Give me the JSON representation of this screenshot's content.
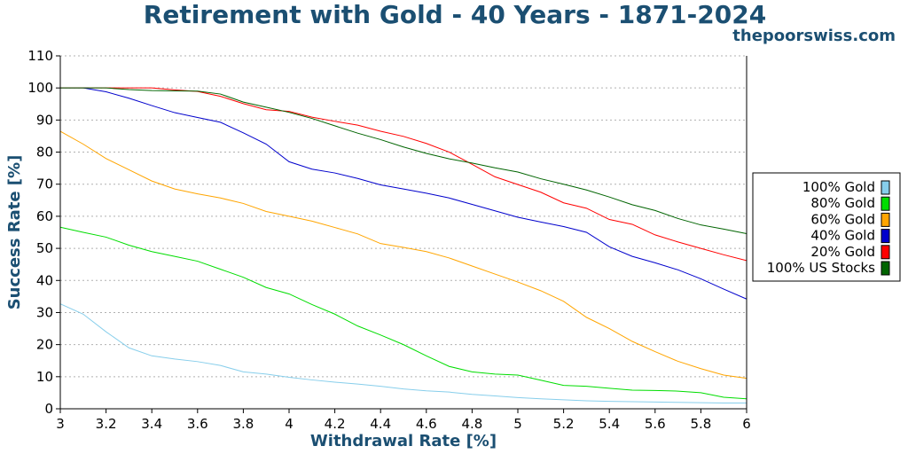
{
  "chart_data": {
    "type": "line",
    "title": "Retirement with Gold - 40 Years - 1871-2024",
    "watermark": "thepoorswiss.com",
    "xlabel": "Withdrawal Rate [%]",
    "ylabel": "Success Rate [%]",
    "xlim": [
      3,
      6
    ],
    "ylim": [
      0,
      110
    ],
    "xticks": [
      "3",
      "3.2",
      "3.4",
      "3.6",
      "3.8",
      "4",
      "4.2",
      "4.4",
      "4.6",
      "4.8",
      "5",
      "5.2",
      "5.4",
      "5.6",
      "5.8",
      "6"
    ],
    "yticks": [
      "0",
      "10",
      "20",
      "30",
      "40",
      "50",
      "60",
      "70",
      "80",
      "90",
      "100",
      "110"
    ],
    "grid": "horizontal dotted",
    "legend_position": "right",
    "x": [
      3.0,
      3.1,
      3.2,
      3.3,
      3.4,
      3.5,
      3.6,
      3.7,
      3.8,
      3.9,
      4.0,
      4.1,
      4.2,
      4.3,
      4.4,
      4.5,
      4.6,
      4.7,
      4.8,
      4.9,
      5.0,
      5.1,
      5.2,
      5.3,
      5.4,
      5.5,
      5.6,
      5.7,
      5.8,
      5.9,
      6.0
    ],
    "series": [
      {
        "name": "100% Gold",
        "color": "#87ceeb",
        "values": [
          32.7,
          29.5,
          24.0,
          19.0,
          16.5,
          15.5,
          14.7,
          13.5,
          11.5,
          10.8,
          9.8,
          9.0,
          8.3,
          7.7,
          7.0,
          6.2,
          5.6,
          5.2,
          4.5,
          4.0,
          3.5,
          3.1,
          2.8,
          2.5,
          2.3,
          2.2,
          2.1,
          2.0,
          1.9,
          1.8,
          1.8
        ]
      },
      {
        "name": "80% Gold",
        "color": "#00dd00",
        "values": [
          56.6,
          55.0,
          53.5,
          51.0,
          49.0,
          47.5,
          46.0,
          43.5,
          41.0,
          37.8,
          35.8,
          32.5,
          29.5,
          25.8,
          23.0,
          20.0,
          16.5,
          13.2,
          11.5,
          10.8,
          10.5,
          8.9,
          7.3,
          7.0,
          6.4,
          5.8,
          5.7,
          5.5,
          5.0,
          3.6,
          3.1
        ]
      },
      {
        "name": "60% Gold",
        "color": "#ffa500",
        "values": [
          86.5,
          82.5,
          78.0,
          74.5,
          71.0,
          68.5,
          67.0,
          65.7,
          64.0,
          61.5,
          60.0,
          58.5,
          56.5,
          54.5,
          51.5,
          50.3,
          49.0,
          47.0,
          44.5,
          42.0,
          39.5,
          36.8,
          33.5,
          28.5,
          25.0,
          21.0,
          17.8,
          14.8,
          12.5,
          10.5,
          9.5
        ]
      },
      {
        "name": "40% Gold",
        "color": "#0000cc",
        "values": [
          100.0,
          100.0,
          98.8,
          96.8,
          94.5,
          92.3,
          90.8,
          89.3,
          86.0,
          82.5,
          77.0,
          74.7,
          73.5,
          71.8,
          69.8,
          68.5,
          67.2,
          65.7,
          63.7,
          61.7,
          59.7,
          58.2,
          56.8,
          55.0,
          50.5,
          47.5,
          45.5,
          43.3,
          40.5,
          37.3,
          34.2
        ]
      },
      {
        "name": "20% Gold",
        "color": "#ff0000",
        "values": [
          100.0,
          100.0,
          100.0,
          100.0,
          100.0,
          99.4,
          98.9,
          97.4,
          95.1,
          93.2,
          92.7,
          90.9,
          89.6,
          88.4,
          86.5,
          84.9,
          82.7,
          80.0,
          76.2,
          72.3,
          69.9,
          67.5,
          64.2,
          62.5,
          59.0,
          57.5,
          54.2,
          52.0,
          50.0,
          48.0,
          46.2
        ]
      },
      {
        "name": "100% US Stocks",
        "color": "#006400",
        "values": [
          100.0,
          100.0,
          100.0,
          99.5,
          99.2,
          99.1,
          99.0,
          98.1,
          95.6,
          94.0,
          92.4,
          90.5,
          88.2,
          85.9,
          83.9,
          81.6,
          79.6,
          77.9,
          76.6,
          75.1,
          73.8,
          71.7,
          70.0,
          68.2,
          66.0,
          63.6,
          61.8,
          59.3,
          57.3,
          56.0,
          54.6
        ]
      }
    ]
  }
}
